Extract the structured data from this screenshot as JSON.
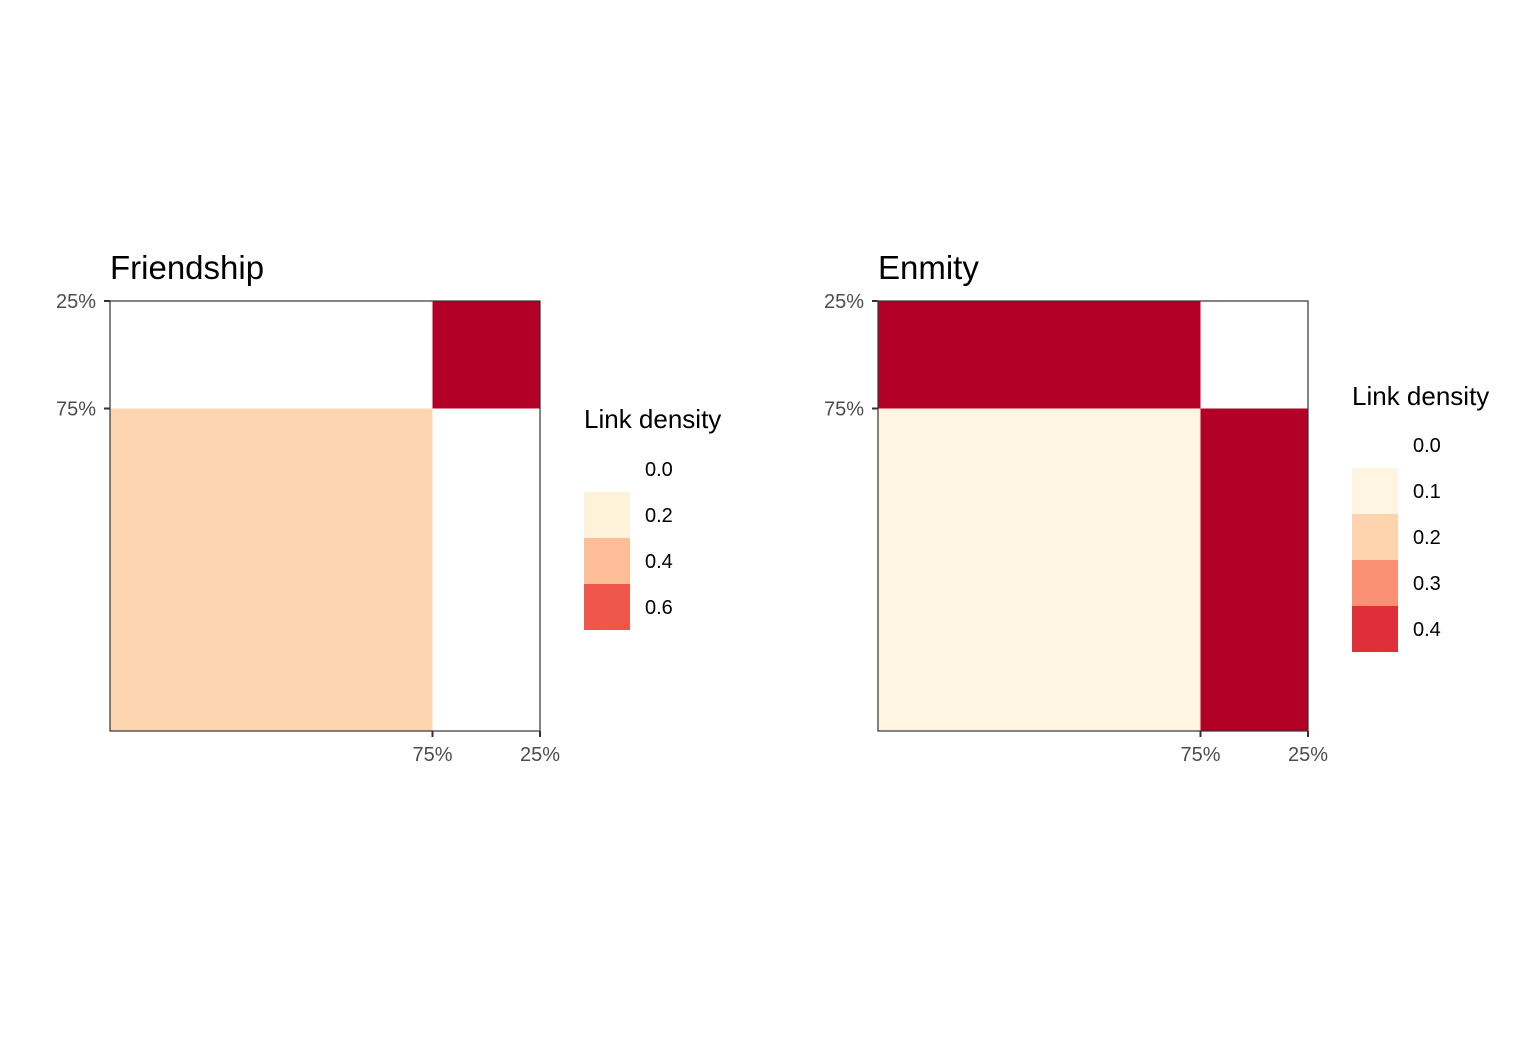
{
  "chart_data": [
    {
      "type": "heatmap",
      "title": "Friendship",
      "x_ticks": [
        "75%",
        "25%"
      ],
      "y_ticks": [
        "25%",
        "75%"
      ],
      "x_breaks": [
        0.75,
        1.0
      ],
      "y_breaks": [
        0.0,
        0.25
      ],
      "blocks": [
        {
          "x": [
            0.0,
            0.75
          ],
          "y": [
            0.0,
            0.25
          ],
          "color": "#ffffff"
        },
        {
          "x": [
            0.75,
            1.0
          ],
          "y": [
            0.0,
            0.25
          ],
          "color": "#b30026"
        },
        {
          "x": [
            0.0,
            0.75
          ],
          "y": [
            0.25,
            1.0
          ],
          "color": "#fdd5b0"
        },
        {
          "x": [
            0.75,
            1.0
          ],
          "y": [
            0.25,
            1.0
          ],
          "color": "#ffffff"
        }
      ],
      "legend": {
        "title": "Link density",
        "position": "right",
        "items": [
          {
            "label": "0.0",
            "color": "#ffffff"
          },
          {
            "label": "0.2",
            "color": "#fef2db"
          },
          {
            "label": "0.4",
            "color": "#fdbd96"
          },
          {
            "label": "0.6",
            "color": "#f0574c"
          }
        ]
      }
    },
    {
      "type": "heatmap",
      "title": "Enmity",
      "x_ticks": [
        "75%",
        "25%"
      ],
      "y_ticks": [
        "25%",
        "75%"
      ],
      "x_breaks": [
        0.75,
        1.0
      ],
      "y_breaks": [
        0.0,
        0.25
      ],
      "blocks": [
        {
          "x": [
            0.0,
            0.75
          ],
          "y": [
            0.0,
            0.25
          ],
          "color": "#b30026"
        },
        {
          "x": [
            0.75,
            1.0
          ],
          "y": [
            0.0,
            0.25
          ],
          "color": "#ffffff"
        },
        {
          "x": [
            0.0,
            0.75
          ],
          "y": [
            0.25,
            1.0
          ],
          "color": "#fff5e1"
        },
        {
          "x": [
            0.75,
            1.0
          ],
          "y": [
            0.25,
            1.0
          ],
          "color": "#b30026"
        }
      ],
      "legend": {
        "title": "Link density",
        "position": "right",
        "items": [
          {
            "label": "0.0",
            "color": "#ffffff"
          },
          {
            "label": "0.1",
            "color": "#fff5e1"
          },
          {
            "label": "0.2",
            "color": "#fed3ad"
          },
          {
            "label": "0.3",
            "color": "#fc9075"
          },
          {
            "label": "0.4",
            "color": "#df303a"
          }
        ]
      }
    }
  ]
}
